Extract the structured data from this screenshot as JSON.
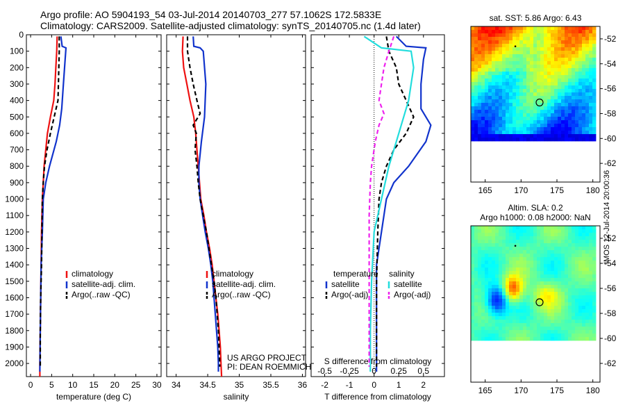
{
  "header": {
    "title_line1": "Argo profile: AO 5904193_54 03-Jul-2014 20140703_277 57.1062S 172.5833E",
    "title_line2": "Climatology: CARS2009. Satellite-adjusted climatology: synTS_20140705.nc (1.4d later)"
  },
  "footer": {
    "timestamp": "IMOS 12-Jul-2014 20:00:36"
  },
  "colors": {
    "red": "#ee1111",
    "blue": "#1133cc",
    "black": "#000000",
    "cyan": "#22dddd",
    "magenta": "#ee22ee"
  },
  "chart_data": [
    {
      "type": "line",
      "xlabel": "temperature (deg C)",
      "xlim": [
        -1,
        31
      ],
      "xticks": [
        0,
        5,
        10,
        15,
        20,
        25,
        30
      ],
      "ylim": [
        2080,
        0
      ],
      "yticks": [
        0,
        100,
        200,
        300,
        400,
        500,
        600,
        700,
        800,
        900,
        1000,
        1100,
        1200,
        1300,
        1400,
        1500,
        1600,
        1700,
        1800,
        1900,
        2000
      ],
      "legend": [
        "climatology",
        "satellite-adj. clim.",
        "Argo(..raw -QC)"
      ],
      "legend_position": "lower-center",
      "series": [
        {
          "name": "climatology",
          "color": "red",
          "points": [
            [
              6.3,
              10
            ],
            [
              6.2,
              100
            ],
            [
              6.0,
              200
            ],
            [
              5.8,
              300
            ],
            [
              5.5,
              400
            ],
            [
              4.7,
              500
            ],
            [
              4.0,
              600
            ],
            [
              3.6,
              700
            ],
            [
              3.2,
              800
            ],
            [
              3.0,
              900
            ],
            [
              2.8,
              1000
            ],
            [
              2.7,
              1100
            ],
            [
              2.6,
              1200
            ],
            [
              2.5,
              1400
            ],
            [
              2.4,
              1600
            ],
            [
              2.3,
              1800
            ],
            [
              2.2,
              2000
            ],
            [
              2.2,
              2080
            ]
          ]
        },
        {
          "name": "satellite-adj. clim.",
          "color": "blue",
          "points": [
            [
              7.2,
              10
            ],
            [
              7.5,
              70
            ],
            [
              8.4,
              80
            ],
            [
              8.2,
              150
            ],
            [
              7.8,
              300
            ],
            [
              7.4,
              450
            ],
            [
              6.9,
              550
            ],
            [
              6.1,
              650
            ],
            [
              4.5,
              800
            ],
            [
              3.6,
              900
            ],
            [
              3.0,
              1000
            ],
            [
              2.8,
              1200
            ],
            [
              2.5,
              1400
            ],
            [
              2.4,
              1600
            ],
            [
              2.3,
              1800
            ],
            [
              2.2,
              2050
            ]
          ]
        },
        {
          "name": "Argo(..raw -QC)",
          "color": "black",
          "dash": true,
          "points": [
            [
              6.8,
              10
            ],
            [
              6.8,
              100
            ],
            [
              6.7,
              200
            ],
            [
              6.6,
              300
            ],
            [
              6.5,
              400
            ],
            [
              5.6,
              500
            ],
            [
              4.7,
              600
            ],
            [
              3.9,
              700
            ],
            [
              3.3,
              800
            ],
            [
              3.0,
              900
            ],
            [
              2.8,
              1000
            ],
            [
              2.7,
              1200
            ],
            [
              2.6,
              1400
            ],
            [
              2.4,
              1600
            ],
            [
              2.3,
              1800
            ],
            [
              2.3,
              2020
            ]
          ]
        }
      ]
    },
    {
      "type": "line",
      "xlabel": "salinity",
      "xlim": [
        33.85,
        36.05
      ],
      "xticks": [
        34,
        34.5,
        35,
        35.5,
        36
      ],
      "ylim": [
        2080,
        0
      ],
      "legend": [
        "climatology",
        "satellite-adj. clim.",
        "Argo(..raw -QC)"
      ],
      "legend_position": "lower-center",
      "annotation": [
        "US ARGO PROJECT",
        "PI: DEAN ROEMMICH"
      ],
      "series": [
        {
          "name": "climatology",
          "color": "red",
          "points": [
            [
              34.11,
              10
            ],
            [
              34.1,
              100
            ],
            [
              34.12,
              200
            ],
            [
              34.17,
              300
            ],
            [
              34.22,
              400
            ],
            [
              34.28,
              500
            ],
            [
              34.31,
              600
            ],
            [
              34.33,
              700
            ],
            [
              34.35,
              800
            ],
            [
              34.37,
              900
            ],
            [
              34.39,
              1000
            ],
            [
              34.44,
              1100
            ],
            [
              34.48,
              1200
            ],
            [
              34.53,
              1300
            ],
            [
              34.57,
              1400
            ],
            [
              34.6,
              1500
            ],
            [
              34.63,
              1600
            ],
            [
              34.66,
              1700
            ],
            [
              34.68,
              1800
            ],
            [
              34.7,
              1900
            ],
            [
              34.71,
              2000
            ],
            [
              34.72,
              2080
            ]
          ]
        },
        {
          "name": "satellite-adj. clim.",
          "color": "blue",
          "points": [
            [
              34.27,
              10
            ],
            [
              34.28,
              70
            ],
            [
              34.38,
              80
            ],
            [
              34.43,
              100
            ],
            [
              34.47,
              300
            ],
            [
              34.45,
              500
            ],
            [
              34.4,
              650
            ],
            [
              34.36,
              800
            ],
            [
              34.36,
              900
            ],
            [
              34.38,
              1000
            ],
            [
              34.42,
              1100
            ],
            [
              34.46,
              1200
            ],
            [
              34.51,
              1300
            ],
            [
              34.55,
              1400
            ],
            [
              34.58,
              1500
            ],
            [
              34.6,
              1600
            ],
            [
              34.62,
              1700
            ],
            [
              34.64,
              1800
            ],
            [
              34.66,
              1900
            ],
            [
              34.67,
              2000
            ],
            [
              34.67,
              2050
            ]
          ]
        },
        {
          "name": "Argo(..raw -QC)",
          "color": "black",
          "dash": true,
          "points": [
            [
              34.18,
              10
            ],
            [
              34.18,
              100
            ],
            [
              34.22,
              200
            ],
            [
              34.27,
              300
            ],
            [
              34.33,
              400
            ],
            [
              34.38,
              480
            ],
            [
              34.27,
              550
            ],
            [
              34.32,
              600
            ],
            [
              34.3,
              700
            ],
            [
              34.33,
              800
            ],
            [
              34.35,
              900
            ],
            [
              34.38,
              1000
            ],
            [
              34.43,
              1100
            ],
            [
              34.48,
              1200
            ],
            [
              34.52,
              1300
            ],
            [
              34.56,
              1400
            ],
            [
              34.6,
              1500
            ],
            [
              34.63,
              1600
            ],
            [
              34.65,
              1700
            ],
            [
              34.67,
              1800
            ],
            [
              34.68,
              1900
            ],
            [
              34.69,
              2000
            ],
            [
              34.69,
              2020
            ]
          ]
        }
      ]
    },
    {
      "type": "line",
      "xlabel": "T difference from climatology",
      "xlabel_top": "S difference from climatology",
      "xlim": [
        -2.55,
        2.85
      ],
      "xticks": [
        -2,
        -1,
        0,
        1,
        2
      ],
      "xticks_top_labels": [
        [
          "-0.5",
          -2
        ],
        [
          "-0.25",
          -1
        ],
        [
          "0",
          0
        ],
        [
          "0.25",
          1
        ],
        [
          "0.5",
          2
        ]
      ],
      "ylim": [
        2080,
        0
      ],
      "legend": [
        "temperature",
        "satellite",
        "Argo(-adj)",
        "salinity",
        "satellite",
        "Argo(-adj)"
      ],
      "legend_position": "lower-center",
      "series": [
        {
          "name": "satellite",
          "color": "blue",
          "points": [
            [
              0.9,
              10
            ],
            [
              1.3,
              70
            ],
            [
              2.1,
              80
            ],
            [
              2.0,
              150
            ],
            [
              1.9,
              300
            ],
            [
              1.9,
              450
            ],
            [
              2.3,
              550
            ],
            [
              2.1,
              650
            ],
            [
              1.4,
              800
            ],
            [
              0.8,
              900
            ],
            [
              0.5,
              1000
            ],
            [
              0.3,
              1200
            ],
            [
              0.1,
              1400
            ],
            [
              0.1,
              1600
            ],
            [
              0.1,
              1800
            ],
            [
              0.1,
              2050
            ]
          ]
        },
        {
          "name": "Argo(-adj)",
          "color": "black",
          "dash": true,
          "points": [
            [
              0.5,
              10
            ],
            [
              0.6,
              100
            ],
            [
              0.9,
              200
            ],
            [
              1.0,
              300
            ],
            [
              1.3,
              400
            ],
            [
              1.6,
              500
            ],
            [
              1.3,
              600
            ],
            [
              0.8,
              700
            ],
            [
              0.5,
              800
            ],
            [
              0.3,
              900
            ],
            [
              0.2,
              1000
            ],
            [
              0.15,
              1200
            ],
            [
              0.1,
              1500
            ],
            [
              0.1,
              1800
            ],
            [
              0.1,
              2020
            ]
          ]
        },
        {
          "name": "satellite (S)",
          "color": "cyan",
          "points": [
            [
              -0.4,
              10
            ],
            [
              0.3,
              80
            ],
            [
              1.5,
              100
            ],
            [
              1.6,
              200
            ],
            [
              1.4,
              400
            ],
            [
              1.2,
              500
            ],
            [
              0.9,
              650
            ],
            [
              0.6,
              800
            ],
            [
              0.3,
              1000
            ],
            [
              0.0,
              1200
            ],
            [
              -0.1,
              1500
            ],
            [
              -0.15,
              1800
            ],
            [
              -0.15,
              2050
            ]
          ]
        },
        {
          "name": "Argo(-adj) (S)",
          "color": "magenta",
          "dash": true,
          "points": [
            [
              0.8,
              10
            ],
            [
              0.6,
              100
            ],
            [
              0.4,
              200
            ],
            [
              0.3,
              300
            ],
            [
              0.2,
              400
            ],
            [
              0.4,
              480
            ],
            [
              0.2,
              550
            ],
            [
              0.05,
              650
            ],
            [
              -0.1,
              800
            ],
            [
              -0.15,
              900
            ],
            [
              -0.2,
              1100
            ],
            [
              -0.2,
              1500
            ],
            [
              -0.2,
              1800
            ],
            [
              -0.2,
              2020
            ]
          ]
        }
      ]
    },
    {
      "type": "heatmap",
      "title": "sat. SST: 5.86 Argo: 6.43",
      "xlim": [
        163,
        181
      ],
      "xticks": [
        165,
        170,
        175,
        180
      ],
      "ylim": [
        -63.5,
        -51
      ],
      "yticks": [
        -52,
        -54,
        -56,
        -58,
        -60,
        -62
      ],
      "data_extent": {
        "lon": [
          163,
          180
        ],
        "lat": [
          -60,
          -51
        ]
      },
      "colormap": "jet",
      "argo_position": [
        172.58,
        -57.11
      ],
      "point_marker": [
        169.2,
        -52.6
      ]
    },
    {
      "type": "heatmap",
      "title_lines": [
        "Altim. SLA: 0.2",
        "Argo h1000: 0.08 h2000: NaN"
      ],
      "xlim": [
        163,
        181
      ],
      "xticks": [
        165,
        170,
        175,
        180
      ],
      "ylim": [
        -63.5,
        -51
      ],
      "yticks": [
        -52,
        -54,
        -56,
        -58,
        -60,
        -62
      ],
      "data_extent": {
        "lon": [
          163,
          180
        ],
        "lat": [
          -60,
          -51
        ]
      },
      "colormap": "jet",
      "argo_position": [
        172.58,
        -57.11
      ],
      "point_marker": [
        169.2,
        -52.6
      ]
    }
  ]
}
